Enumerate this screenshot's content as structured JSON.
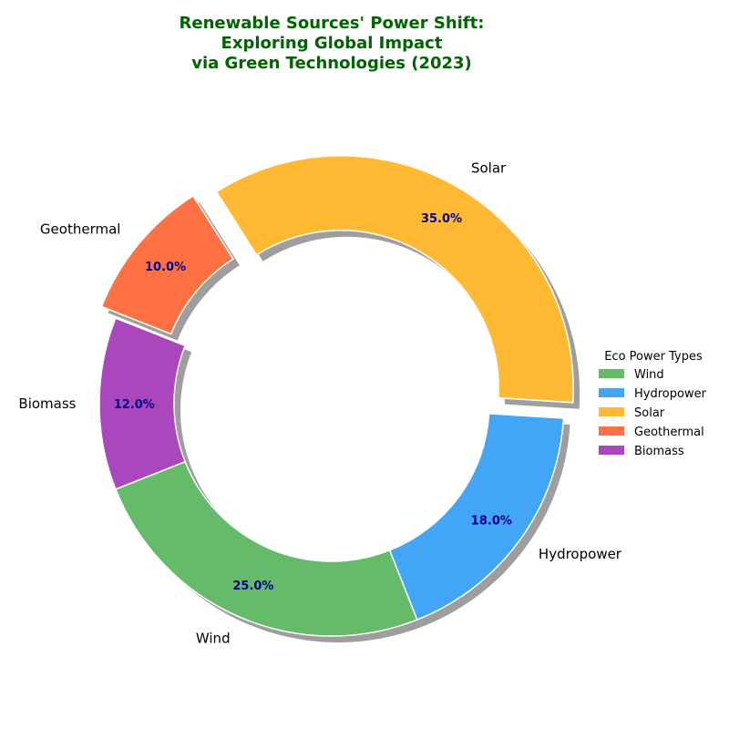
{
  "chart_data": {
    "type": "pie",
    "style": "donut",
    "title_lines": [
      "Renewable Sources' Power Shift:",
      "Exploring Global Impact",
      "via Green Technologies (2023)"
    ],
    "categories": [
      "Wind",
      "Hydropower",
      "Solar",
      "Geothermal",
      "Biomass"
    ],
    "values": [
      25.0,
      18.0,
      35.0,
      10.0,
      12.0
    ],
    "value_labels": [
      "25.0%",
      "18.0%",
      "35.0%",
      "10.0%",
      "12.0%"
    ],
    "colors": [
      "#66bb6a",
      "#42a5f5",
      "#ffb933",
      "#ff7043",
      "#ab47bc"
    ],
    "exploded": [
      "Solar",
      "Geothermal"
    ],
    "shadow": true,
    "legend": {
      "title": "Eco Power Types",
      "placement": "center-right",
      "entries": [
        "Wind",
        "Hydropower",
        "Solar",
        "Geothermal",
        "Biomass"
      ]
    }
  }
}
